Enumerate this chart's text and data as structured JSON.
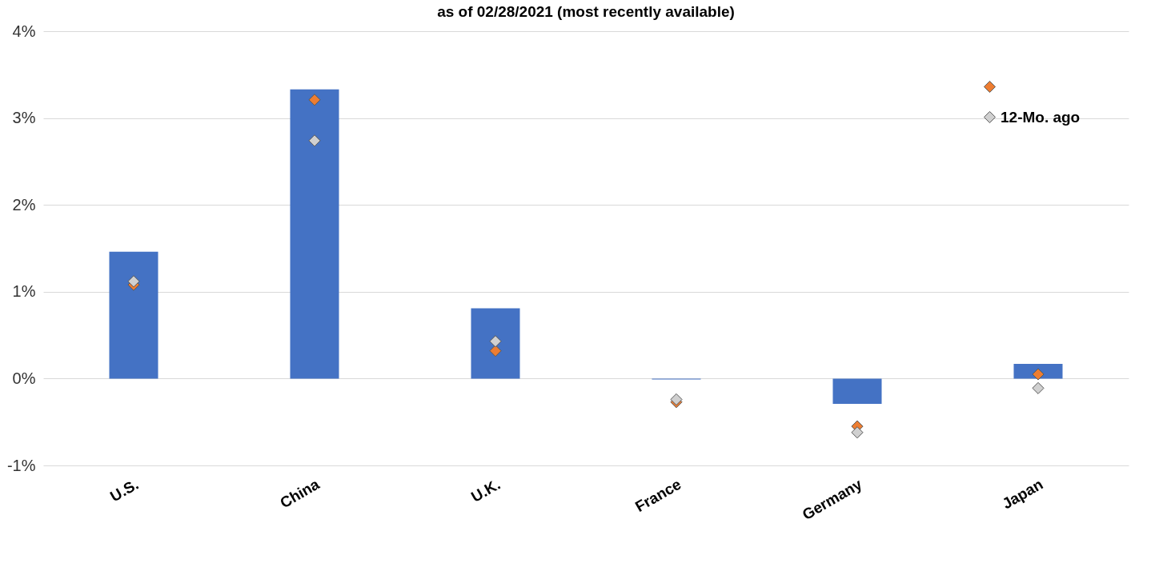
{
  "chart_data": {
    "type": "bar",
    "title": "as of 02/28/2021 (most recently available)",
    "categories": [
      "U.S.",
      "China",
      "U.K.",
      "France",
      "Germany",
      "Japan"
    ],
    "series": [
      {
        "color": "#4472c4",
        "values": [
          1.46,
          3.33,
          0.81,
          -0.01,
          -0.29,
          0.17
        ]
      },
      {
        "type": "scatter",
        "color": "#ed7d31",
        "values": [
          1.08,
          3.21,
          0.32,
          -0.27,
          -0.55,
          0.05
        ]
      },
      {
        "type": "scatter",
        "name": "12-Mo. ago",
        "color": "#d0d0d0",
        "values": [
          1.12,
          2.74,
          0.43,
          -0.24,
          -0.62,
          -0.11
        ]
      }
    ],
    "ylim": [
      -1,
      4
    ],
    "yticks": [
      {
        "value": -1,
        "label": "-1%"
      },
      {
        "value": 0,
        "label": "0%"
      },
      {
        "value": 1,
        "label": "1%"
      },
      {
        "value": 2,
        "label": "2%"
      },
      {
        "value": 3,
        "label": "3%"
      },
      {
        "value": 4,
        "label": "4%"
      }
    ],
    "grid": "y",
    "legend": "top right",
    "marker": "diamond"
  }
}
